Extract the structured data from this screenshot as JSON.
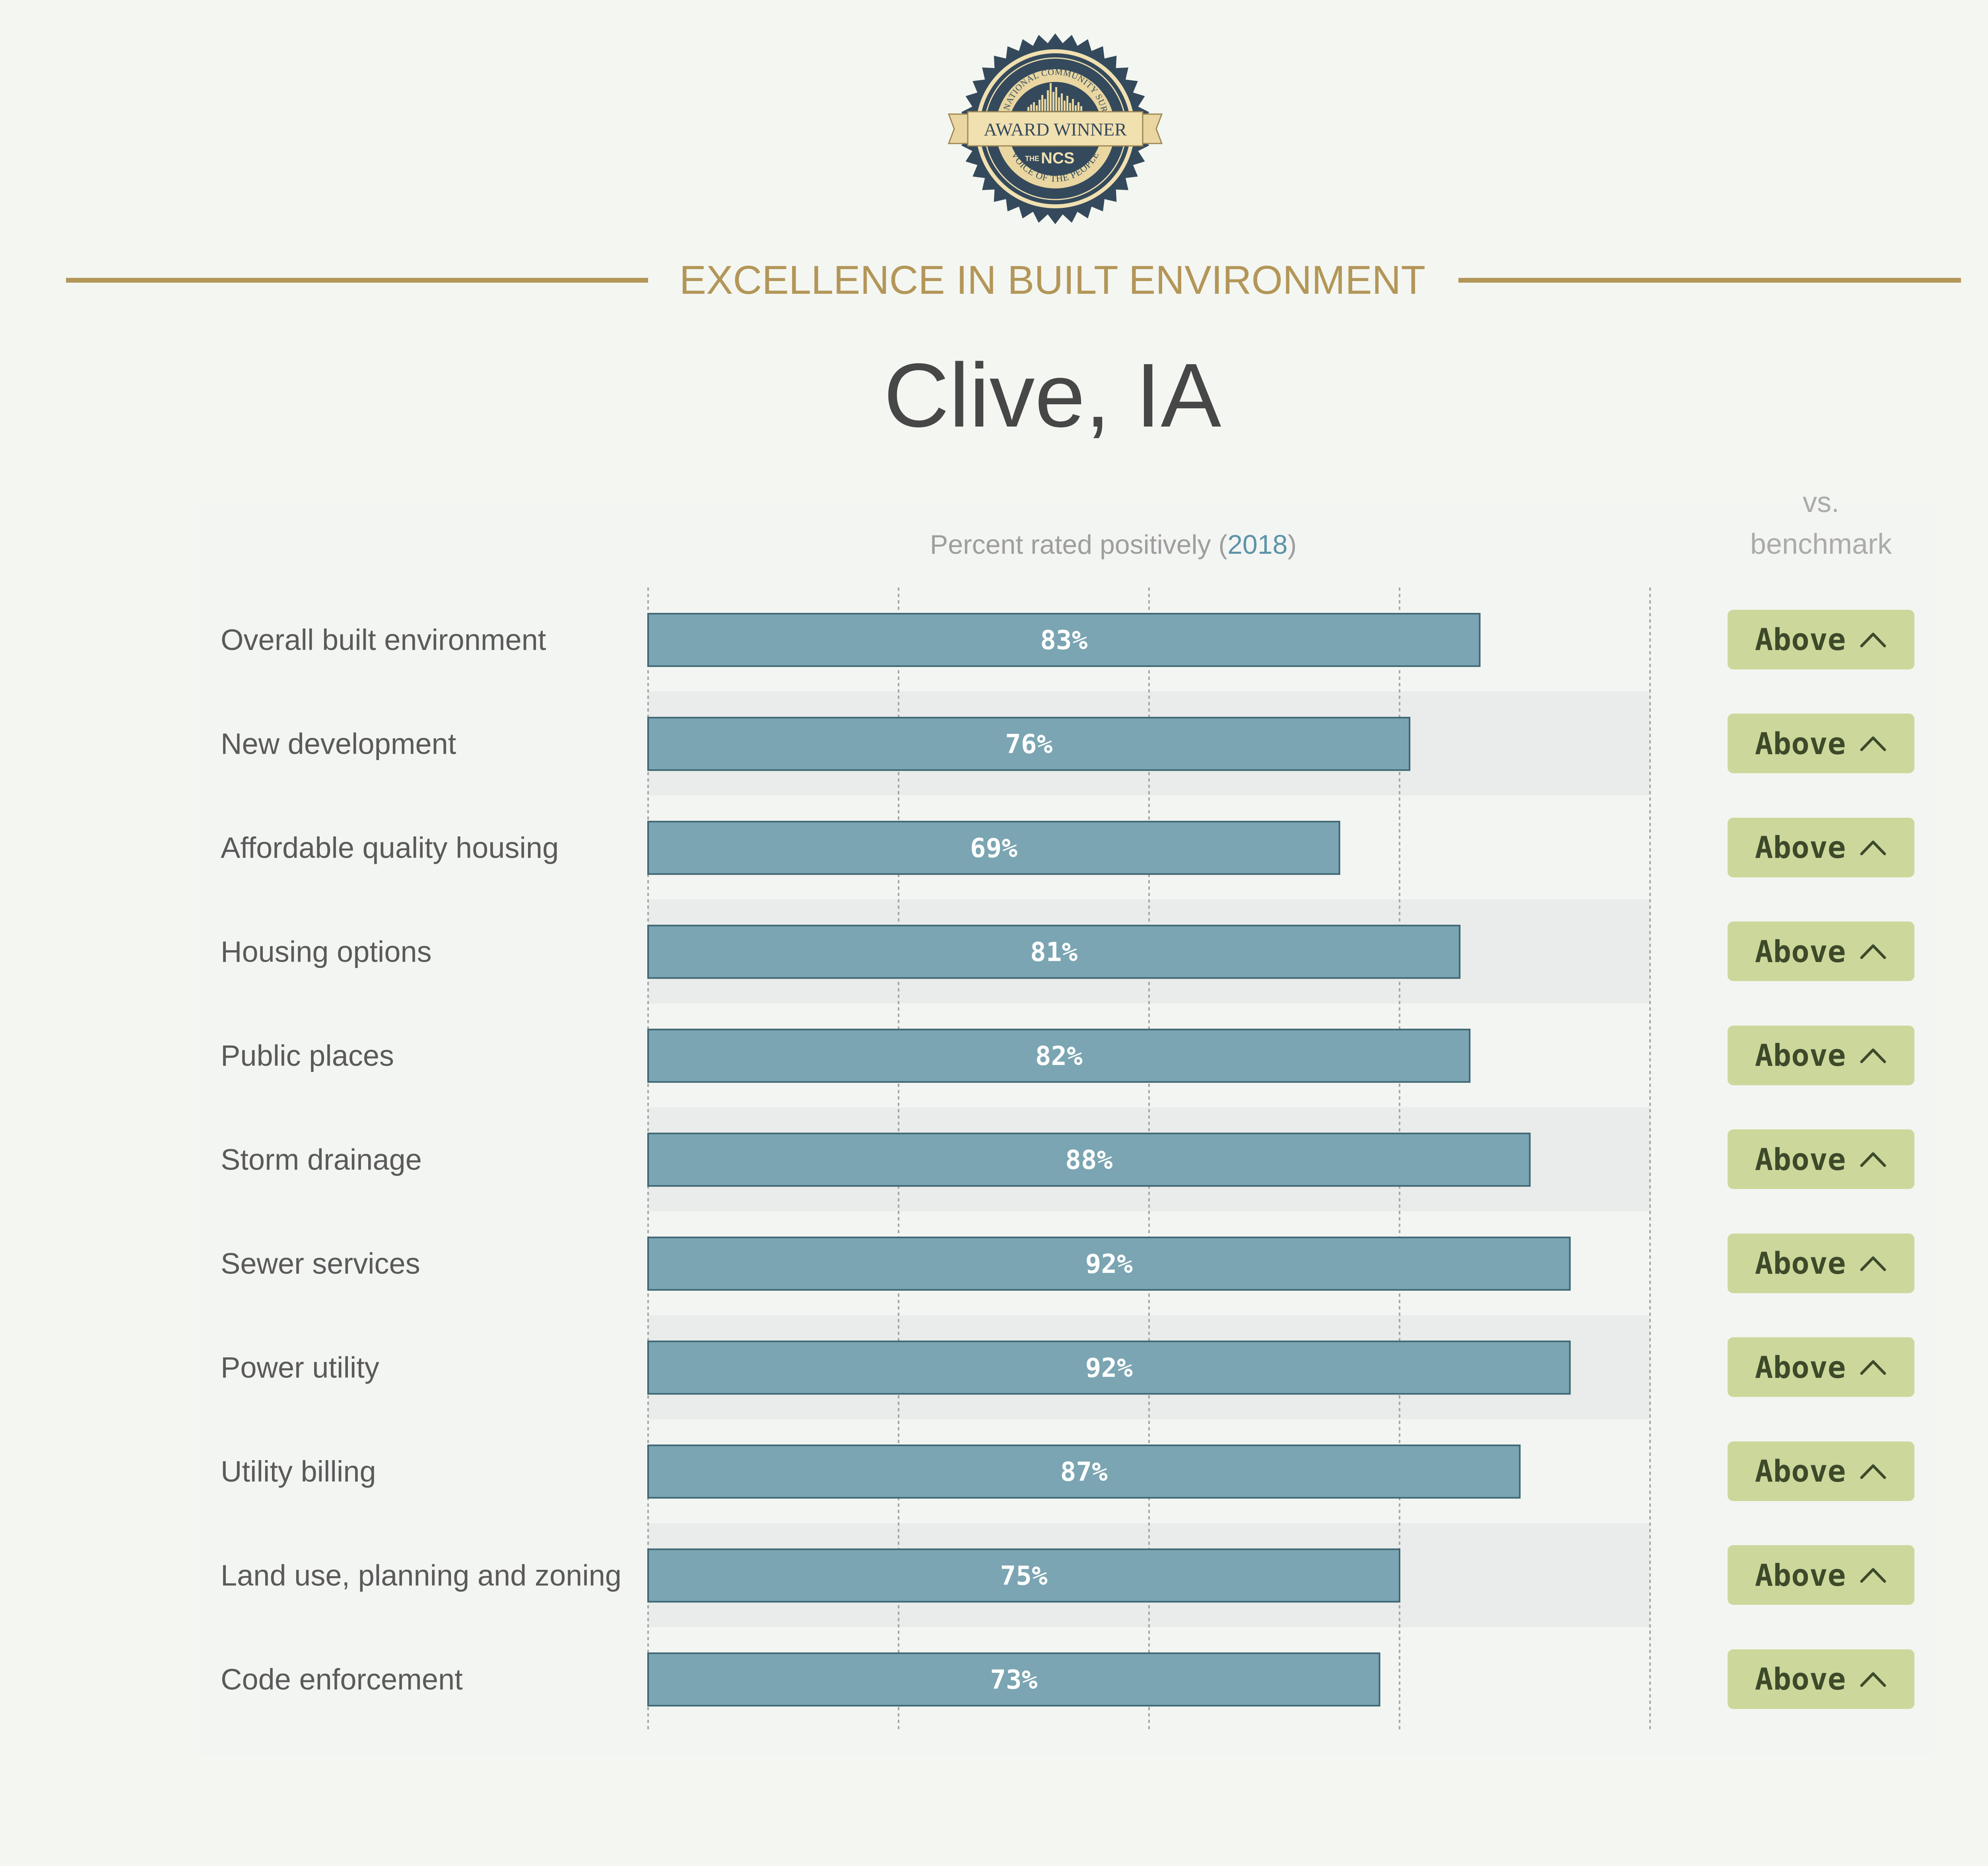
{
  "award": {
    "seal_lines": {
      "arc_top": "THE NATIONAL COMMUNITY SURVEY",
      "ribbon": "AWARD WINNER",
      "logo_small": "THE",
      "logo_main": "NCS",
      "arc_bottom": "VOICE OF THE PEOPLE"
    },
    "title": "EXCELLENCE IN BUILT ENVIRONMENT"
  },
  "city": "Clive, IA",
  "header": {
    "label": "Percent rated positively",
    "year": "2018",
    "benchmark_label": "vs.\nbenchmark"
  },
  "colors": {
    "background": "#f4f6f1",
    "accent_gold": "#b39658",
    "bar_fill": "#7ba5b2",
    "bar_stroke": "#3e6674",
    "badge_fill": "#ccd89b",
    "badge_text": "#3d4a2a",
    "year_blue": "#5d93a8"
  },
  "icons": [
    "award-seal-icon",
    "chevron-up-icon"
  ],
  "chart_data": {
    "type": "bar",
    "orientation": "horizontal",
    "xlim": [
      0,
      100
    ],
    "grid": true,
    "categories": [
      "Overall built environment",
      "New development",
      "Affordable quality housing",
      "Housing options",
      "Public places",
      "Storm drainage",
      "Sewer services",
      "Power utility",
      "Utility billing",
      "Land use, planning and zoning",
      "Code enforcement"
    ],
    "values": [
      83,
      76,
      69,
      81,
      82,
      88,
      92,
      92,
      87,
      75,
      73
    ],
    "data_labels": [
      "83%",
      "76%",
      "69%",
      "81%",
      "82%",
      "88%",
      "92%",
      "92%",
      "87%",
      "75%",
      "73%"
    ],
    "benchmark": [
      "Above",
      "Above",
      "Above",
      "Above",
      "Above",
      "Above",
      "Above",
      "Above",
      "Above",
      "Above",
      "Above"
    ]
  }
}
